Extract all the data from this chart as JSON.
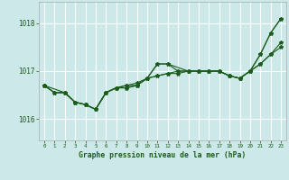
{
  "xlabel": "Graphe pression niveau de la mer (hPa)",
  "bg_color": "#cce8e8",
  "grid_color": "#ffffff",
  "line_color": "#1a5c1a",
  "tick_label_color": "#1a5c1a",
  "axis_label_color": "#1a5c1a",
  "ylim": [
    1015.55,
    1018.45
  ],
  "yticks": [
    1016,
    1017,
    1018
  ],
  "xlim": [
    -0.5,
    23.5
  ],
  "xticks": [
    0,
    1,
    2,
    3,
    4,
    5,
    6,
    7,
    8,
    9,
    10,
    11,
    12,
    13,
    14,
    15,
    16,
    17,
    18,
    19,
    20,
    21,
    22,
    23
  ],
  "series": [
    {
      "x": [
        0,
        1,
        2,
        3,
        4,
        5,
        6,
        7,
        8,
        9,
        10,
        11,
        12,
        13,
        14,
        15,
        16,
        17,
        18,
        19,
        20,
        21,
        22,
        23
      ],
      "y": [
        1016.7,
        1016.55,
        1016.55,
        1016.35,
        1016.3,
        1016.2,
        1016.55,
        1016.65,
        1016.65,
        1016.7,
        1016.85,
        1017.15,
        1017.15,
        1017.0,
        1017.0,
        1017.0,
        1017.0,
        1017.0,
        1016.9,
        1016.85,
        1017.0,
        1017.35,
        1017.8,
        1018.1
      ]
    },
    {
      "x": [
        0,
        1,
        2,
        3,
        4,
        5,
        6,
        7,
        8,
        9,
        10,
        11,
        12,
        13,
        14,
        15,
        16,
        17,
        18,
        19,
        20,
        21,
        22,
        23
      ],
      "y": [
        1016.7,
        1016.55,
        1016.55,
        1016.35,
        1016.3,
        1016.2,
        1016.55,
        1016.65,
        1016.7,
        1016.75,
        1016.85,
        1016.9,
        1016.95,
        1017.0,
        1017.0,
        1017.0,
        1017.0,
        1017.0,
        1016.9,
        1016.85,
        1017.0,
        1017.15,
        1017.35,
        1017.6
      ]
    },
    {
      "x": [
        0,
        1,
        2,
        3,
        4,
        5,
        6,
        7,
        8,
        9,
        10,
        11,
        12,
        13,
        14,
        15,
        16,
        17,
        18,
        19,
        20,
        21,
        22,
        23
      ],
      "y": [
        1016.7,
        1016.55,
        1016.55,
        1016.35,
        1016.3,
        1016.2,
        1016.55,
        1016.65,
        1016.65,
        1016.7,
        1016.85,
        1016.9,
        1016.95,
        1016.95,
        1017.0,
        1017.0,
        1017.0,
        1017.0,
        1016.9,
        1016.85,
        1017.0,
        1017.15,
        1017.35,
        1017.5
      ]
    },
    {
      "x": [
        0,
        2,
        3,
        4,
        5,
        6,
        7,
        8,
        9,
        10,
        11,
        12,
        14,
        15,
        16,
        17,
        18,
        19,
        20,
        21,
        22,
        23
      ],
      "y": [
        1016.7,
        1016.55,
        1016.35,
        1016.3,
        1016.2,
        1016.55,
        1016.65,
        1016.7,
        1016.7,
        1016.85,
        1017.15,
        1017.15,
        1017.0,
        1017.0,
        1017.0,
        1017.0,
        1016.9,
        1016.85,
        1017.0,
        1017.35,
        1017.8,
        1018.1
      ]
    }
  ]
}
